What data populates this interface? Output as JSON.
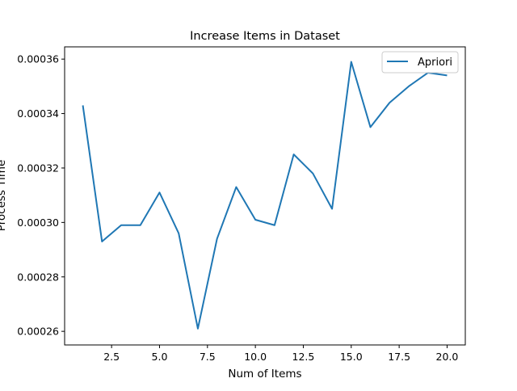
{
  "chart_data": {
    "type": "line",
    "title": "Increase Items in Dataset",
    "xlabel": "Num of Items",
    "ylabel": "Process Time",
    "xlim": [
      0.05,
      20.95
    ],
    "ylim": [
      0.000255,
      0.0003645
    ],
    "x_ticks": [
      2.5,
      5.0,
      7.5,
      10.0,
      12.5,
      15.0,
      17.5,
      20.0
    ],
    "x_tick_labels": [
      "2.5",
      "5.0",
      "7.5",
      "10.0",
      "12.5",
      "15.0",
      "17.5",
      "20.0"
    ],
    "y_ticks": [
      0.00026,
      0.00028,
      0.0003,
      0.00032,
      0.00034,
      0.00036
    ],
    "y_tick_labels": [
      "0.00026",
      "0.00028",
      "0.00030",
      "0.00032",
      "0.00034",
      "0.00036"
    ],
    "grid": false,
    "legend": {
      "position": "upper-right"
    },
    "series": [
      {
        "name": "Apriori",
        "color": "#1f77b4",
        "x": [
          1,
          2,
          3,
          4,
          5,
          6,
          7,
          8,
          9,
          10,
          11,
          12,
          13,
          14,
          15,
          16,
          17,
          18,
          19,
          20
        ],
        "y": [
          0.000343,
          0.000293,
          0.000299,
          0.000299,
          0.000311,
          0.000296,
          0.000261,
          0.000294,
          0.000313,
          0.000301,
          0.000299,
          0.000325,
          0.000318,
          0.000305,
          0.000359,
          0.000335,
          0.000344,
          0.00035,
          0.000355,
          0.000354
        ]
      }
    ]
  }
}
